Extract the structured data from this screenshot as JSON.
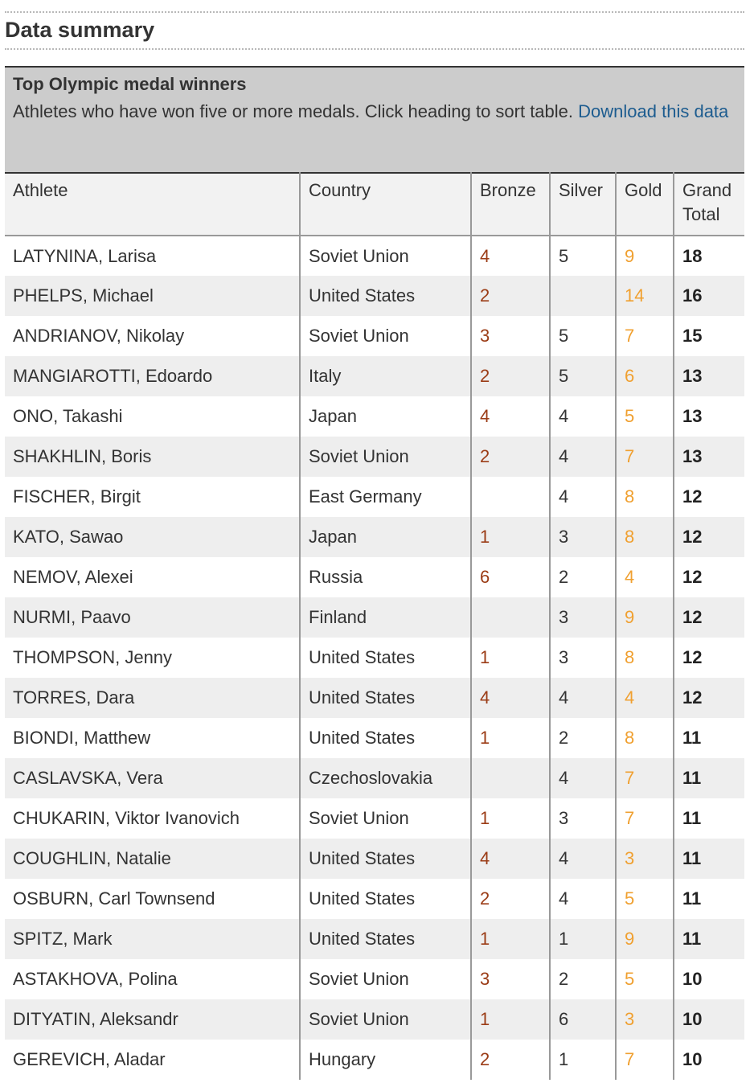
{
  "page": {
    "section_title": "Data summary"
  },
  "caption": {
    "title": "Top Olympic medal winners",
    "description": "Athletes who have won five or more medals. Click heading to sort table.",
    "download_link": "Download this data"
  },
  "colors": {
    "bronze": "#9b3c16",
    "gold": "#f0a030",
    "link": "#1d5c8f",
    "caption_bg": "#cccccc"
  },
  "table": {
    "headers": {
      "athlete": "Athlete",
      "country": "Country",
      "bronze": "Bronze",
      "silver": "Silver",
      "gold": "Gold",
      "total": "Grand Total"
    },
    "rows": [
      {
        "athlete": "LATYNINA, Larisa",
        "country": "Soviet Union",
        "bronze": "4",
        "silver": "5",
        "gold": "9",
        "total": "18"
      },
      {
        "athlete": "PHELPS, Michael",
        "country": "United States",
        "bronze": "2",
        "silver": "",
        "gold": "14",
        "total": "16"
      },
      {
        "athlete": "ANDRIANOV, Nikolay",
        "country": "Soviet Union",
        "bronze": "3",
        "silver": "5",
        "gold": "7",
        "total": "15"
      },
      {
        "athlete": "MANGIAROTTI, Edoardo",
        "country": "Italy",
        "bronze": "2",
        "silver": "5",
        "gold": "6",
        "total": "13"
      },
      {
        "athlete": "ONO, Takashi",
        "country": "Japan",
        "bronze": "4",
        "silver": "4",
        "gold": "5",
        "total": "13"
      },
      {
        "athlete": "SHAKHLIN, Boris",
        "country": "Soviet Union",
        "bronze": "2",
        "silver": "4",
        "gold": "7",
        "total": "13"
      },
      {
        "athlete": "FISCHER, Birgit",
        "country": "East Germany",
        "bronze": "",
        "silver": "4",
        "gold": "8",
        "total": "12"
      },
      {
        "athlete": "KATO, Sawao",
        "country": "Japan",
        "bronze": "1",
        "silver": "3",
        "gold": "8",
        "total": "12"
      },
      {
        "athlete": "NEMOV, Alexei",
        "country": "Russia",
        "bronze": "6",
        "silver": "2",
        "gold": "4",
        "total": "12"
      },
      {
        "athlete": "NURMI, Paavo",
        "country": "Finland",
        "bronze": "",
        "silver": "3",
        "gold": "9",
        "total": "12"
      },
      {
        "athlete": "THOMPSON, Jenny",
        "country": "United States",
        "bronze": "1",
        "silver": "3",
        "gold": "8",
        "total": "12"
      },
      {
        "athlete": "TORRES, Dara",
        "country": "United States",
        "bronze": "4",
        "silver": "4",
        "gold": "4",
        "total": "12"
      },
      {
        "athlete": "BIONDI, Matthew",
        "country": "United States",
        "bronze": "1",
        "silver": "2",
        "gold": "8",
        "total": "11"
      },
      {
        "athlete": "CASLAVSKA, Vera",
        "country": "Czechoslovakia",
        "bronze": "",
        "silver": "4",
        "gold": "7",
        "total": "11"
      },
      {
        "athlete": "CHUKARIN, Viktor Ivanovich",
        "country": "Soviet Union",
        "bronze": "1",
        "silver": "3",
        "gold": "7",
        "total": "11"
      },
      {
        "athlete": "COUGHLIN, Natalie",
        "country": "United States",
        "bronze": "4",
        "silver": "4",
        "gold": "3",
        "total": "11"
      },
      {
        "athlete": "OSBURN, Carl Townsend",
        "country": "United States",
        "bronze": "2",
        "silver": "4",
        "gold": "5",
        "total": "11"
      },
      {
        "athlete": "SPITZ, Mark",
        "country": "United States",
        "bronze": "1",
        "silver": "1",
        "gold": "9",
        "total": "11"
      },
      {
        "athlete": "ASTAKHOVA, Polina",
        "country": "Soviet Union",
        "bronze": "3",
        "silver": "2",
        "gold": "5",
        "total": "10"
      },
      {
        "athlete": "DITYATIN, Aleksandr",
        "country": "Soviet Union",
        "bronze": "1",
        "silver": "6",
        "gold": "3",
        "total": "10"
      },
      {
        "athlete": "GEREVICH, Aladar",
        "country": "Hungary",
        "bronze": "2",
        "silver": "1",
        "gold": "7",
        "total": "10"
      }
    ]
  }
}
